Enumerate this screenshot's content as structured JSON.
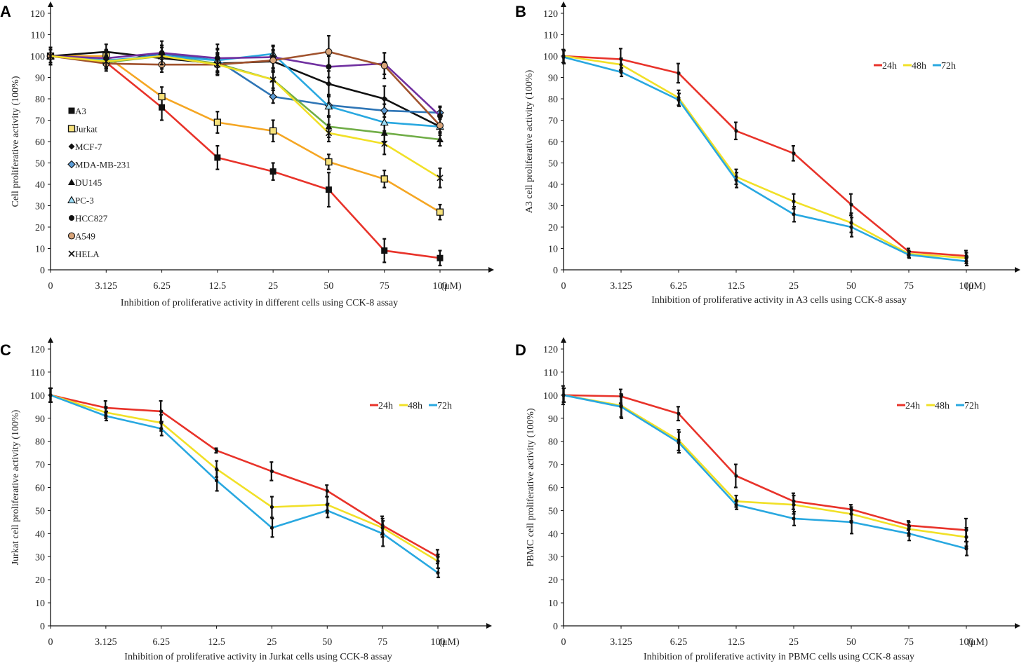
{
  "chart_data": [
    {
      "panel": "A",
      "type": "line",
      "title": "",
      "xlabel": "Inhibition of proliferative activity in different cells using CCK-8 assay",
      "ylabel": "Cell proliferative activity  (100%)",
      "x_unit_label": "(μM)",
      "categories": [
        "0",
        "3.125",
        "6.25",
        "12.5",
        "25",
        "50",
        "75",
        "100"
      ],
      "yticks": [
        0,
        10,
        20,
        30,
        40,
        50,
        60,
        70,
        80,
        90,
        100,
        110,
        120
      ],
      "ylim": [
        0,
        120
      ],
      "legend_position": "left-middle",
      "series": [
        {
          "name": "A3",
          "color": "#e8332a",
          "marker": "square-filled",
          "values": [
            100,
            97,
            76,
            52.5,
            46,
            37.5,
            9,
            5.5
          ],
          "errors": [
            4,
            3,
            6,
            5.5,
            4,
            8,
            5.5,
            3.5
          ]
        },
        {
          "name": "Jurkat",
          "color": "#f5a623",
          "marker": "square-open",
          "values": [
            100,
            100,
            81,
            69,
            65,
            50.5,
            42.5,
            27
          ],
          "errors": [
            3,
            3,
            4.5,
            5,
            5,
            3.5,
            4,
            3.5
          ]
        },
        {
          "name": "MCF-7",
          "color": "#111111",
          "marker": "diamond-filled",
          "values": [
            100,
            102,
            99,
            96.5,
            97.5,
            87,
            80,
            67
          ],
          "errors": [
            4,
            3.5,
            5,
            5,
            5,
            6,
            6,
            4
          ]
        },
        {
          "name": "MDA-MB-231",
          "color": "#2e75b6",
          "marker": "diamond-open",
          "values": [
            100,
            97,
            101,
            98,
            81,
            77,
            74.5,
            73.5
          ],
          "errors": [
            3,
            3,
            4,
            5.5,
            3,
            5,
            3,
            3
          ]
        },
        {
          "name": "DU145",
          "color": "#70ad47",
          "marker": "triangle-filled",
          "values": [
            100,
            97,
            100,
            96.5,
            89,
            67,
            64,
            61
          ],
          "errors": [
            3,
            3,
            4,
            5,
            5,
            5,
            4,
            3
          ]
        },
        {
          "name": "PC-3",
          "color": "#29a8e0",
          "marker": "triangle-open",
          "values": [
            100,
            98,
            100,
            98,
            101,
            76.5,
            69,
            67
          ],
          "errors": [
            4,
            4,
            5,
            5,
            4,
            5,
            4,
            4
          ]
        },
        {
          "name": "HCC827",
          "color": "#7030a0",
          "marker": "circle-filled",
          "values": [
            100,
            99,
            101.5,
            99,
            99.5,
            95,
            96.5,
            72
          ],
          "errors": [
            4,
            4,
            5.5,
            6.5,
            5,
            5,
            5,
            4
          ]
        },
        {
          "name": "A549",
          "color": "#a0522d",
          "marker": "circle-open",
          "values": [
            100,
            96.5,
            96,
            96,
            98,
            102,
            95.5,
            67.5
          ],
          "errors": [
            4,
            3.5,
            3.5,
            5,
            5,
            7.5,
            6,
            3
          ]
        },
        {
          "name": "HELA",
          "color": "#f1e027",
          "marker": "cross",
          "values": [
            100,
            97.5,
            100,
            96,
            89,
            64,
            59,
            43
          ],
          "errors": [
            3,
            3,
            4,
            4.5,
            4,
            4,
            5,
            4.5
          ]
        }
      ]
    },
    {
      "panel": "B",
      "type": "line",
      "title": "",
      "xlabel": "Inhibition of proliferative activity in A3 cells using CCK-8 assay",
      "ylabel": "A3 cell proliferative activity  (100%)",
      "x_unit_label": "(μM)",
      "categories": [
        "0",
        "3.125",
        "6.25",
        "12.5",
        "25",
        "50",
        "75",
        "100"
      ],
      "yticks": [
        0,
        10,
        20,
        30,
        40,
        50,
        60,
        70,
        80,
        90,
        100,
        110,
        120
      ],
      "ylim": [
        0,
        120
      ],
      "legend_position": "top-right",
      "series": [
        {
          "name": "24h",
          "color": "#e8332a",
          "values": [
            100,
            98.5,
            92,
            65,
            54.5,
            30.5,
            8.5,
            6.5
          ],
          "errors": [
            3,
            5,
            4.5,
            4,
            3.5,
            5,
            1.5,
            2.5
          ]
        },
        {
          "name": "48h",
          "color": "#f1e027",
          "values": [
            100,
            96,
            80.5,
            43.5,
            32,
            22,
            7.5,
            5.5
          ],
          "errors": [
            3,
            3,
            3.5,
            3.5,
            3.5,
            4.5,
            1.5,
            2.5
          ]
        },
        {
          "name": "72h",
          "color": "#29a8e0",
          "values": [
            99.5,
            92.5,
            79.5,
            42,
            26,
            20,
            7,
            4
          ],
          "errors": [
            3,
            2,
            3,
            3.5,
            3.5,
            4.5,
            1.5,
            2
          ]
        }
      ]
    },
    {
      "panel": "C",
      "type": "line",
      "title": "",
      "xlabel": "Inhibition of proliferative activity in Jurkat cells using CCK-8 assay",
      "ylabel": "Jurkat cell proliferative activity  (100%)",
      "x_unit_label": "(μM)",
      "categories": [
        "0",
        "3.125",
        "6.25",
        "12.5",
        "25",
        "50",
        "75",
        "100"
      ],
      "yticks": [
        0,
        10,
        20,
        30,
        40,
        50,
        60,
        70,
        80,
        90,
        100,
        110,
        120
      ],
      "ylim": [
        0,
        120
      ],
      "legend_position": "top-right",
      "series": [
        {
          "name": "24h",
          "color": "#e8332a",
          "values": [
            100,
            94.5,
            93,
            76,
            67,
            58.5,
            43.5,
            30
          ],
          "errors": [
            3,
            3,
            4.5,
            1,
            4,
            2.5,
            4,
            3
          ]
        },
        {
          "name": "48h",
          "color": "#f1e027",
          "values": [
            100,
            92.5,
            88,
            68,
            51.5,
            52.5,
            42.5,
            28
          ],
          "errors": [
            3,
            2.5,
            3.5,
            3.5,
            4.5,
            3.5,
            4,
            3
          ]
        },
        {
          "name": "72h",
          "color": "#29a8e0",
          "values": [
            100,
            91,
            85.5,
            63,
            42.5,
            50,
            40,
            23
          ],
          "errors": [
            3,
            2,
            3,
            4.5,
            4,
            3,
            5.5,
            2
          ]
        }
      ]
    },
    {
      "panel": "D",
      "type": "line",
      "title": "",
      "xlabel": "Inhibition of proliferative activity in PBMC cells using CCK-8 assay",
      "ylabel": "PBMC cell proliferative activity  (100%)",
      "x_unit_label": "(μM)",
      "categories": [
        "0",
        "3.125",
        "6.25",
        "12.5",
        "25",
        "50",
        "75",
        "100"
      ],
      "yticks": [
        0,
        10,
        20,
        30,
        40,
        50,
        60,
        70,
        80,
        90,
        100,
        110,
        120
      ],
      "ylim": [
        0,
        120
      ],
      "legend_position": "top-right",
      "series": [
        {
          "name": "24h",
          "color": "#e8332a",
          "values": [
            100,
            99.5,
            92,
            65,
            54,
            50.5,
            43.5,
            41.5
          ],
          "errors": [
            4,
            3,
            3,
            5,
            3.5,
            2,
            2,
            5
          ]
        },
        {
          "name": "48h",
          "color": "#f1e027",
          "values": [
            100,
            95.5,
            80.5,
            54,
            52.5,
            48.5,
            42,
            38.5
          ],
          "errors": [
            3,
            5,
            4.5,
            2.5,
            4,
            3,
            3,
            4
          ]
        },
        {
          "name": "72h",
          "color": "#29a8e0",
          "values": [
            100,
            95,
            79.5,
            52.5,
            46.5,
            45,
            40,
            33.5
          ],
          "errors": [
            3,
            5,
            4.5,
            2,
            3,
            5,
            3,
            3
          ]
        }
      ]
    }
  ]
}
